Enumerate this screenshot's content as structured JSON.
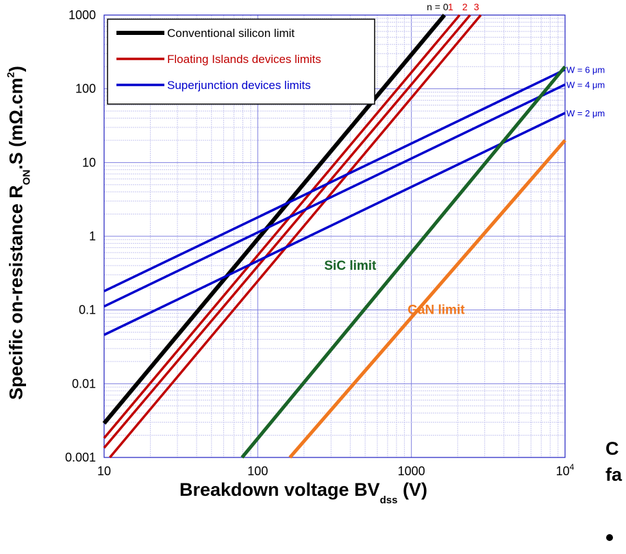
{
  "chart_data": {
    "type": "line",
    "x_scale": "log",
    "y_scale": "log",
    "xlim": [
      10,
      10000
    ],
    "ylim": [
      0.001,
      1000
    ],
    "grid": true,
    "xticks": [
      "10",
      "100",
      "1000",
      "10^4"
    ],
    "yticks": [
      "0.001",
      "0.01",
      "0.1",
      "1",
      "10",
      "100",
      "1000"
    ],
    "xlabel": {
      "main": "Breakdown voltage BV",
      "sub": "dss",
      "unit": " (V)"
    },
    "ylabel": {
      "main": "Specific on-resistance R",
      "sub": "ON",
      "mid": ".S (mΩ.cm",
      "sup": "2",
      "end": ")"
    },
    "legend_position": "top-left",
    "legend": [
      {
        "label": "Conventional silicon limit",
        "color": "#000000"
      },
      {
        "label": "Floating Islands devices limits",
        "color": "#c00000"
      },
      {
        "label": "Superjunction devices limits",
        "color": "#0000cc"
      }
    ],
    "series": [
      {
        "group": "Conventional silicon limit",
        "color": "#000000",
        "width": 6,
        "x": [
          10,
          1640
        ],
        "y": [
          0.0029,
          1000
        ]
      },
      {
        "group": "Floating Islands devices limits",
        "color": "#c00000",
        "width": 3.5,
        "x": [
          10,
          2060
        ],
        "y": [
          0.00183,
          1000
        ]
      },
      {
        "group": "Floating Islands devices limits",
        "color": "#c00000",
        "width": 3.5,
        "x": [
          10,
          2410
        ],
        "y": [
          0.00135,
          1000
        ]
      },
      {
        "group": "Floating Islands devices limits",
        "color": "#c00000",
        "width": 3.5,
        "x": [
          10.9,
          2830
        ],
        "y": [
          0.001,
          1000
        ]
      },
      {
        "group": "Superjunction devices limits",
        "color": "#0000cc",
        "width": 3.5,
        "x": [
          10,
          10000
        ],
        "y": [
          0.18,
          182
        ]
      },
      {
        "group": "Superjunction devices limits",
        "color": "#0000cc",
        "width": 3.5,
        "x": [
          10,
          10000
        ],
        "y": [
          0.112,
          114
        ]
      },
      {
        "group": "Superjunction devices limits",
        "color": "#0000cc",
        "width": 3.5,
        "x": [
          10,
          10000
        ],
        "y": [
          0.046,
          47
        ]
      },
      {
        "group": "SiC limit",
        "color": "#1a6428",
        "width": 5,
        "x": [
          79,
          10000
        ],
        "y": [
          0.001,
          200
        ]
      },
      {
        "group": "GaN limit",
        "color": "#f07820",
        "width": 5,
        "x": [
          162,
          10000
        ],
        "y": [
          0.001,
          20
        ]
      }
    ],
    "annotations": [
      {
        "text": "n = 0",
        "color": "#000000",
        "x": 1480,
        "y": 1000,
        "size": 14,
        "bold": false,
        "anchor": "middle",
        "dy": -7
      },
      {
        "text": "1",
        "color": "#dd0000",
        "x": 1800,
        "y": 1000,
        "size": 14,
        "bold": false,
        "anchor": "middle",
        "dy": -7
      },
      {
        "text": "2",
        "color": "#dd0000",
        "x": 2230,
        "y": 1000,
        "size": 14,
        "bold": false,
        "anchor": "middle",
        "dy": -7
      },
      {
        "text": "3",
        "color": "#dd0000",
        "x": 2650,
        "y": 1000,
        "size": 14,
        "bold": false,
        "anchor": "middle",
        "dy": -7
      },
      {
        "text": "W = 6 μm",
        "color": "#0000cc",
        "x": 10000,
        "y": 182,
        "size": 13,
        "bold": false,
        "anchor": "start",
        "dx": 2,
        "dy": 0
      },
      {
        "text": "W = 4 μm",
        "color": "#0000cc",
        "x": 10000,
        "y": 114,
        "size": 13,
        "bold": false,
        "anchor": "start",
        "dx": 2,
        "dy": 0
      },
      {
        "text": "W = 2 μm",
        "color": "#0000cc",
        "x": 10000,
        "y": 47,
        "size": 13,
        "bold": false,
        "anchor": "start",
        "dx": 2,
        "dy": 0
      },
      {
        "text": "SiC limit",
        "color": "#1a6428",
        "x": 400,
        "y": 0.4,
        "size": 19,
        "bold": true,
        "anchor": "middle",
        "dy": 6
      },
      {
        "text": "GaN limit",
        "color": "#f07820",
        "x": 1450,
        "y": 0.1,
        "size": 19,
        "bold": true,
        "anchor": "middle",
        "dy": 6
      }
    ]
  },
  "side_text": {
    "line1": "C",
    "line2": "fa"
  }
}
